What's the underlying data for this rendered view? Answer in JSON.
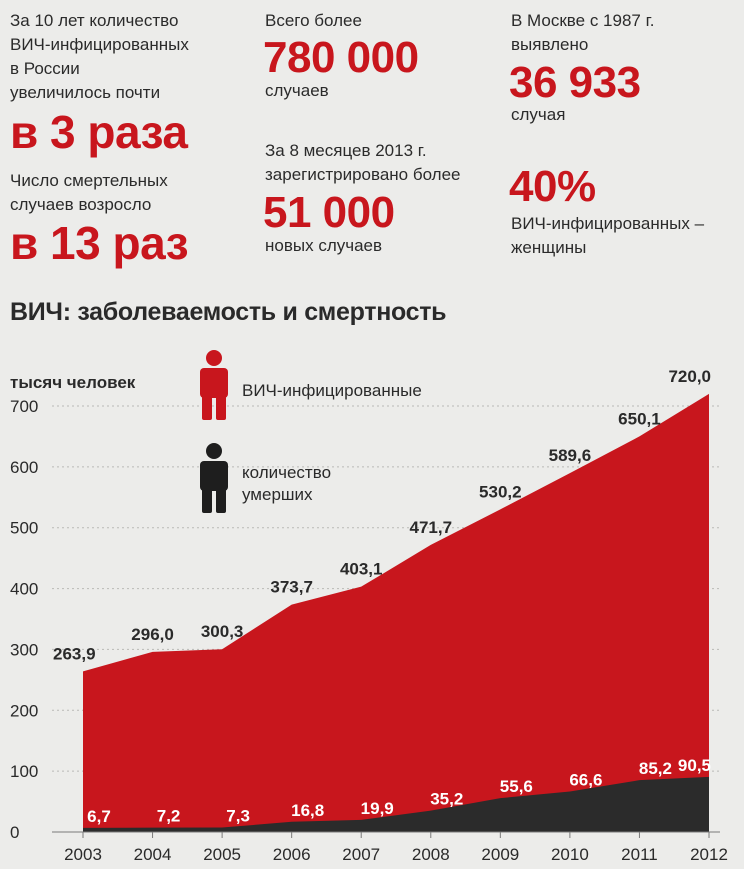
{
  "facts": {
    "left_top_text": [
      "За 10 лет количество",
      "ВИЧ-инфицированных",
      "в России",
      "увеличилось почти"
    ],
    "left_top_big": "в 3 раза",
    "left_bottom_text": [
      "Число смертельных",
      "случаев возросло"
    ],
    "left_bottom_big": "в 13 раз",
    "mid_top_text": "Всего более",
    "mid_top_big": "780 000",
    "mid_top_sub": "случаев",
    "mid_bottom_text": [
      "За 8 месяцев 2013 г.",
      "зарегистрировано более"
    ],
    "mid_bottom_big": "51 000",
    "mid_bottom_sub": "новых случаев",
    "right_top_text": [
      "В Москве с 1987 г.",
      "выявлено"
    ],
    "right_top_big": "36 933",
    "right_top_sub": "случая",
    "right_bottom_big": "40%",
    "right_bottom_text": [
      "ВИЧ-инфицированных –",
      "женщины"
    ]
  },
  "chart_data": {
    "type": "area",
    "title": "ВИЧ: заболеваемость и смертность",
    "ylabel": "тысяч человек",
    "x": [
      "2003",
      "2004",
      "2005",
      "2006",
      "2007",
      "2008",
      "2009",
      "2010",
      "2011",
      "2012"
    ],
    "ylim": [
      0,
      700
    ],
    "yticks": [
      "0",
      "100",
      "200",
      "300",
      "400",
      "500",
      "600",
      "700"
    ],
    "grid": true,
    "legend_position": "top-left",
    "series": [
      {
        "name": "ВИЧ-инфицированные",
        "color": "#c8161d",
        "values": [
          263.9,
          296.0,
          300.3,
          373.7,
          403.1,
          471.7,
          530.2,
          589.6,
          650.1,
          720.0
        ],
        "labels": [
          "263,9",
          "296,0",
          "300,3",
          "373,7",
          "403,1",
          "471,7",
          "530,2",
          "589,6",
          "650,1",
          "720,0"
        ]
      },
      {
        "name": "количество умерших",
        "color": "#2b2b2b",
        "values": [
          6.7,
          7.2,
          7.3,
          16.8,
          19.9,
          35.2,
          55.6,
          66.6,
          85.2,
          90.5
        ],
        "labels": [
          "6,7",
          "7,2",
          "7,3",
          "16,8",
          "19,9",
          "35,2",
          "55,6",
          "66,6",
          "85,2",
          "90,5"
        ]
      }
    ],
    "legend": [
      {
        "label": "ВИЧ-инфицированные",
        "icon": "red-person-icon"
      },
      {
        "label": "количество умерших",
        "icon": "black-person-icon"
      }
    ]
  }
}
